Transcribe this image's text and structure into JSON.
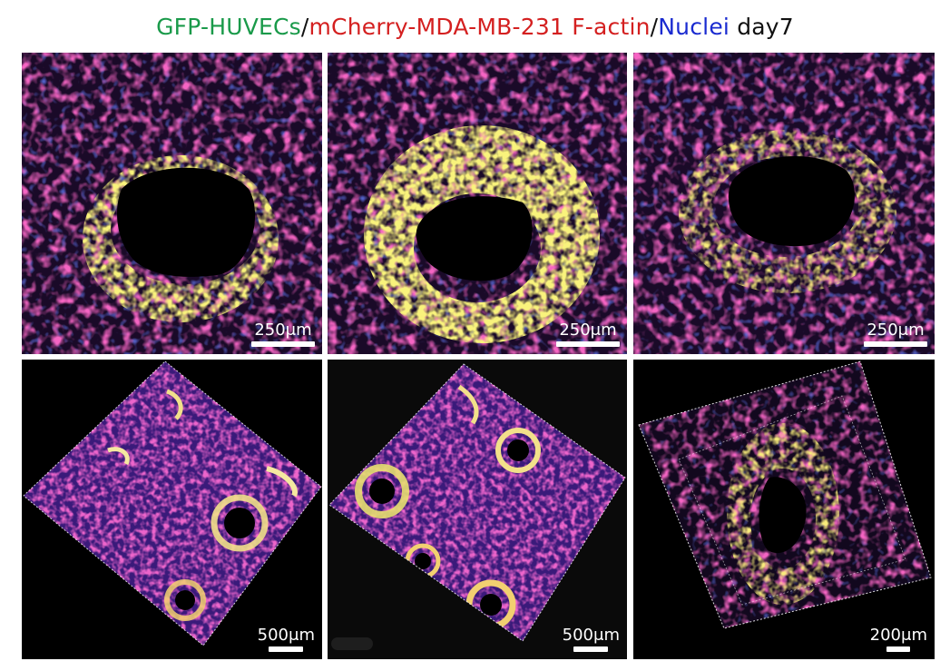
{
  "title": {
    "green": "GFP-HUVECs",
    "sep1": "/",
    "red": "mCherry-MDA-MB-231 F-actin",
    "sep2": "/",
    "blue": "Nuclei",
    "rest": " day7"
  },
  "colors": {
    "green": "#1a9a4a",
    "red": "#d42020",
    "blue": "#1a2bd0",
    "magenta": "#e8207a",
    "yellow": "#f2e63a"
  },
  "panels": [
    {
      "scale": "250μm"
    },
    {
      "scale": "250μm"
    },
    {
      "scale": "250μm"
    },
    {
      "scale": "500μm"
    },
    {
      "scale": "500μm"
    },
    {
      "scale": "200μm"
    }
  ]
}
